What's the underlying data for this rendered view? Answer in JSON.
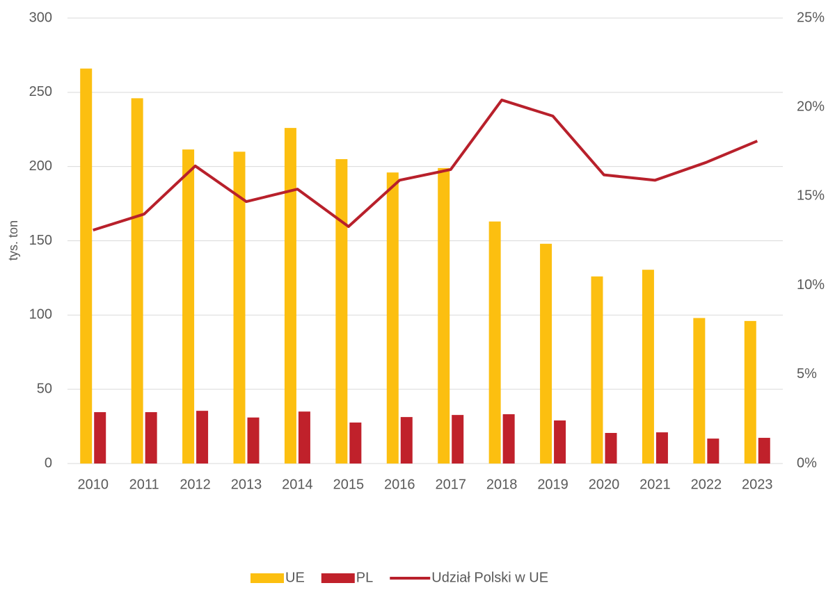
{
  "chart_data": {
    "type": "bar_line",
    "y_label": "tys. ton",
    "categories": [
      "2010",
      "2011",
      "2012",
      "2013",
      "2014",
      "2015",
      "2016",
      "2017",
      "2018",
      "2019",
      "2020",
      "2021",
      "2022",
      "2023"
    ],
    "series": [
      {
        "name": "UE",
        "type": "bar",
        "color": "#fcbf10",
        "values": [
          266,
          246,
          211.5,
          210,
          226,
          205,
          196,
          199,
          163,
          148,
          126,
          130.5,
          98,
          96
        ]
      },
      {
        "name": "PL",
        "type": "bar",
        "color": "#c0212b",
        "values": [
          34.6,
          34.6,
          35.5,
          31,
          35,
          27.6,
          31.3,
          32.7,
          33.2,
          29,
          20.6,
          21,
          16.8,
          17.3
        ]
      },
      {
        "name": "Udział Polski w UE",
        "type": "line",
        "axis": "y2",
        "color": "#b8202b",
        "values": [
          13.1,
          14.0,
          16.7,
          14.7,
          15.4,
          13.3,
          15.9,
          16.5,
          20.4,
          19.5,
          16.2,
          15.9,
          16.9,
          18.1
        ]
      }
    ],
    "ylim": [
      0,
      300
    ],
    "yticks": [
      0,
      50,
      100,
      150,
      200,
      250,
      300
    ],
    "y2lim": [
      0,
      25
    ],
    "y2ticks": [
      {
        "value": 0,
        "label": "0%"
      },
      {
        "value": 5,
        "label": "5%"
      },
      {
        "value": 10,
        "label": "10%"
      },
      {
        "value": 15,
        "label": "15%"
      },
      {
        "value": 20,
        "label": "20%"
      },
      {
        "value": 25,
        "label": "25%"
      }
    ],
    "grid": true,
    "legend": "bottom"
  }
}
